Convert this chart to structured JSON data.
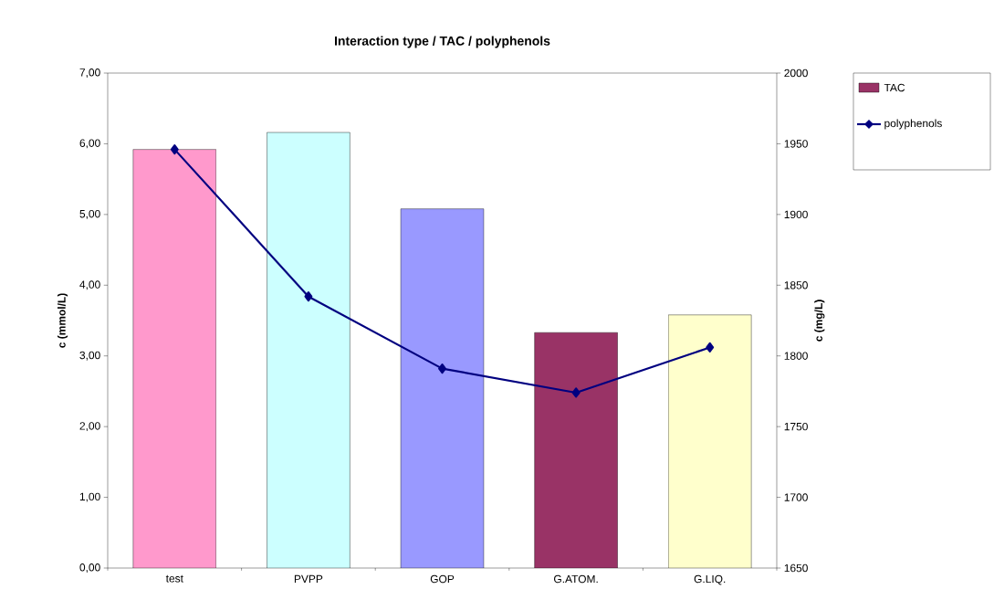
{
  "chart_data": {
    "type": "bar",
    "title": "Interaction type / TAC / polyphenols",
    "ylabel": "c (mmol/L)",
    "y2label": "c (mg/L)",
    "categories": [
      "test",
      "PVPP",
      "GOP",
      "G.ATOM.",
      "G.LIQ."
    ],
    "series": [
      {
        "name": "TAC",
        "color": "#993366",
        "colors": [
          "#ff99cc",
          "#ccffff",
          "#9999ff",
          "#993366",
          "#ffffcc"
        ],
        "values": [
          5.92,
          6.16,
          5.08,
          3.33,
          3.58
        ]
      },
      {
        "name": "polyphenols",
        "type": "line",
        "axis": "y2",
        "color": "#000080",
        "marker": "diamond",
        "values": [
          1946,
          1842,
          1791,
          1774,
          1806
        ]
      }
    ],
    "ylim": [
      0,
      7
    ],
    "yticks": [
      {
        "value": 0,
        "label": "0,00"
      },
      {
        "value": 1,
        "label": "1,00"
      },
      {
        "value": 2,
        "label": "2,00"
      },
      {
        "value": 3,
        "label": "3,00"
      },
      {
        "value": 4,
        "label": "4,00"
      },
      {
        "value": 5,
        "label": "5,00"
      },
      {
        "value": 6,
        "label": "6,00"
      },
      {
        "value": 7,
        "label": "7,00"
      }
    ],
    "y2lim": [
      1650,
      2000
    ],
    "y2ticks": [
      1650,
      1700,
      1750,
      1800,
      1850,
      1900,
      1950,
      2000
    ],
    "legend": "right"
  }
}
